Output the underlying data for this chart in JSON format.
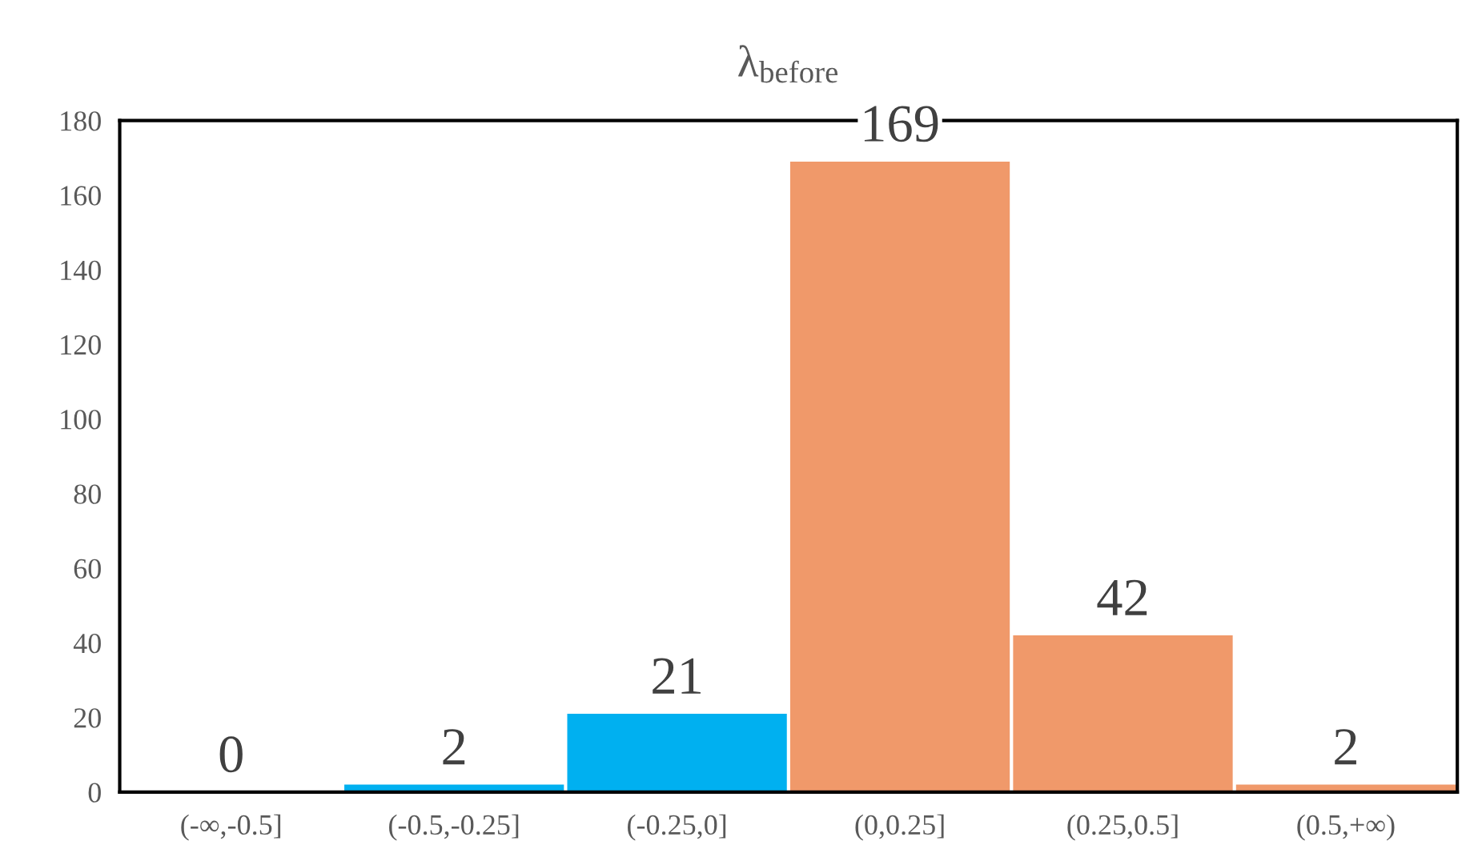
{
  "chart_data": {
    "type": "bar",
    "title": "λ$_{before}$",
    "categories": [
      "(-∞,-0.5]",
      "(-0.5,-0.25]",
      "(-0.25,0]",
      "(0,0.25]",
      "(0.25,0.5]",
      "(0.5,+∞)"
    ],
    "values": [
      0,
      2,
      21,
      169,
      42,
      2
    ],
    "colors": [
      "#00b0f0",
      "#00b0f0",
      "#00b0f0",
      "#f0996a",
      "#f0996a",
      "#f0996a"
    ],
    "ylim": [
      0,
      180
    ],
    "yticks": [
      0,
      20,
      40,
      60,
      80,
      100,
      120,
      140,
      160,
      180
    ],
    "data_labels": true,
    "grid": false,
    "legend": false
  }
}
